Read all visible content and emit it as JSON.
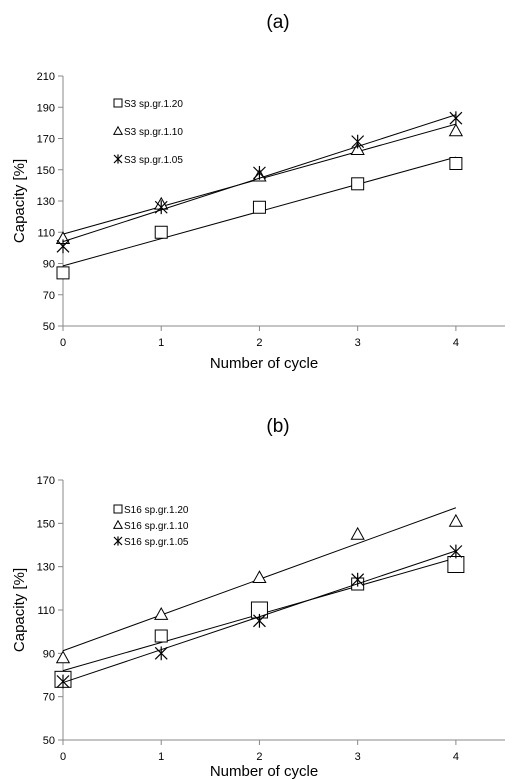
{
  "chart_data": [
    {
      "type": "scatter",
      "panel_label": "(a)",
      "xlabel": "Number of cycle",
      "ylabel": "Capacity  [%]",
      "xlim": [
        0,
        4.5
      ],
      "ylim": [
        50,
        210
      ],
      "xticks": [
        0,
        1,
        2,
        3,
        4
      ],
      "yticks": [
        50,
        70,
        90,
        110,
        130,
        150,
        170,
        190,
        210
      ],
      "legend_placement": "top-left",
      "grid": false,
      "trendlines": true,
      "x": [
        0,
        1,
        2,
        3,
        4
      ],
      "series": [
        {
          "name": "S3 sp.gr.1.20",
          "marker": "square",
          "values": [
            84,
            110,
            126,
            141,
            154
          ],
          "fit": [
            88.5,
            105.9,
            123.3,
            140.7,
            158.1
          ]
        },
        {
          "name": "S3 sp.gr.1.10",
          "marker": "triangle",
          "values": [
            106,
            128,
            146,
            163,
            175
          ],
          "fit": [
            108.8,
            126.4,
            144.0,
            161.6,
            179.2
          ]
        },
        {
          "name": "S3 sp.gr.1.05",
          "marker": "star",
          "values": [
            101,
            126,
            148,
            168,
            183
          ],
          "fit": [
            104.0,
            124.3,
            144.6,
            164.9,
            185.2
          ]
        }
      ]
    },
    {
      "type": "scatter",
      "panel_label": "(b)",
      "xlabel": "Number of cycle",
      "ylabel": "Capacity  [%]",
      "xlim": [
        0,
        4.5
      ],
      "ylim": [
        50,
        170
      ],
      "xticks": [
        0,
        1,
        2,
        3,
        4
      ],
      "yticks": [
        50,
        70,
        90,
        110,
        130,
        150,
        170
      ],
      "legend_placement": "top-left",
      "grid": false,
      "trendlines": true,
      "x": [
        0,
        1,
        2,
        3,
        4
      ],
      "series": [
        {
          "name": "S16 sp.gr.1.20",
          "marker": "square",
          "values": [
            78,
            98,
            110,
            122,
            131
          ],
          "fit": [
            82.0,
            95.0,
            108.0,
            121.0,
            134.0
          ]
        },
        {
          "name": "S16 sp.gr.1.10",
          "marker": "triangle",
          "values": [
            88,
            108,
            125,
            145,
            151
          ],
          "fit": [
            91.2,
            107.7,
            124.2,
            140.7,
            157.2
          ]
        },
        {
          "name": "S16 sp.gr.1.05",
          "marker": "star",
          "values": [
            77,
            90,
            105,
            124,
            137
          ],
          "fit": [
            76.5,
            91.7,
            106.9,
            122.1,
            137.3
          ]
        }
      ]
    }
  ]
}
